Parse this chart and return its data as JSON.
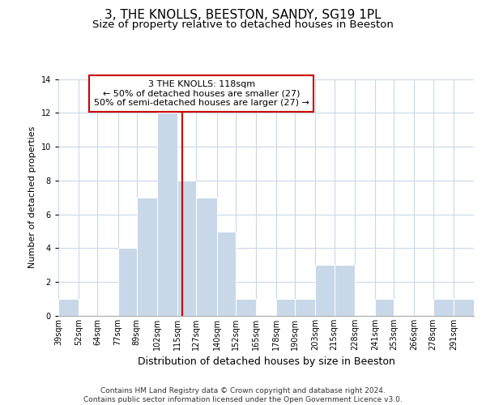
{
  "title": "3, THE KNOLLS, BEESTON, SANDY, SG19 1PL",
  "subtitle": "Size of property relative to detached houses in Beeston",
  "xlabel": "Distribution of detached houses by size in Beeston",
  "ylabel": "Number of detached properties",
  "bin_labels": [
    "39sqm",
    "52sqm",
    "64sqm",
    "77sqm",
    "89sqm",
    "102sqm",
    "115sqm",
    "127sqm",
    "140sqm",
    "152sqm",
    "165sqm",
    "178sqm",
    "190sqm",
    "203sqm",
    "215sqm",
    "228sqm",
    "241sqm",
    "253sqm",
    "266sqm",
    "278sqm",
    "291sqm"
  ],
  "bin_edges": [
    39,
    52,
    64,
    77,
    89,
    102,
    115,
    127,
    140,
    152,
    165,
    178,
    190,
    203,
    215,
    228,
    241,
    253,
    266,
    278,
    291,
    304
  ],
  "counts": [
    1,
    0,
    0,
    4,
    7,
    12,
    8,
    7,
    5,
    1,
    0,
    1,
    1,
    3,
    3,
    0,
    1,
    0,
    0,
    1,
    1
  ],
  "bar_color": "#c8d8e8",
  "bar_edge_color": "#ffffff",
  "property_value": 118,
  "property_line_color": "#cc0000",
  "annotation_text": "3 THE KNOLLS: 118sqm\n← 50% of detached houses are smaller (27)\n50% of semi-detached houses are larger (27) →",
  "annotation_box_color": "#ffffff",
  "annotation_box_edge_color": "#cc0000",
  "ylim": [
    0,
    14
  ],
  "yticks": [
    0,
    2,
    4,
    6,
    8,
    10,
    12,
    14
  ],
  "grid_color": "#c8d8e8",
  "background_color": "#ffffff",
  "footer_text": "Contains HM Land Registry data © Crown copyright and database right 2024.\nContains public sector information licensed under the Open Government Licence v3.0.",
  "title_fontsize": 11,
  "subtitle_fontsize": 9.5,
  "xlabel_fontsize": 9,
  "ylabel_fontsize": 8,
  "tick_fontsize": 7,
  "annotation_fontsize": 8,
  "footer_fontsize": 6.5
}
